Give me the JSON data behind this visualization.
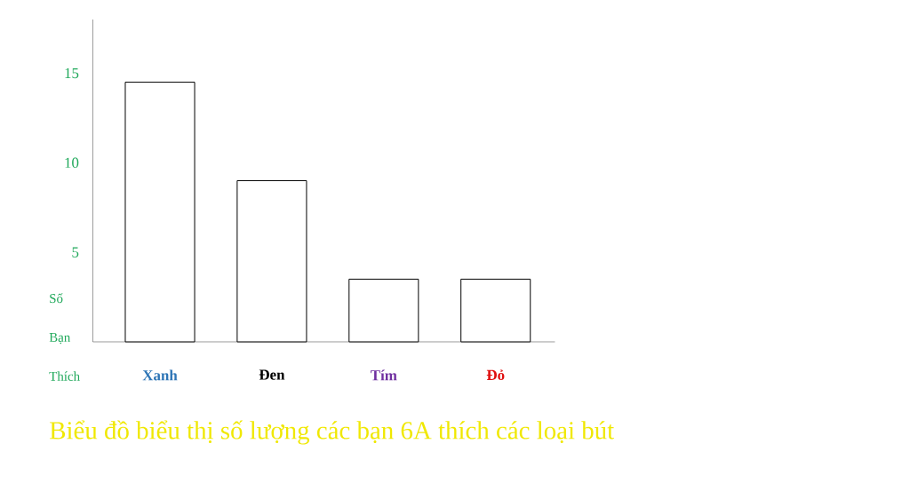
{
  "chart_data": {
    "type": "bar",
    "title": "Biểu đồ biểu thị số lượng các bạn 6A thích các loại bút",
    "ylabel": "Số Bạn Thích",
    "categories": [
      "Xanh",
      "Đen",
      "Tím",
      "Đỏ"
    ],
    "values": [
      14.5,
      9,
      3.5,
      3.5
    ],
    "color": "#ffffff",
    "ylim": [
      0,
      18
    ],
    "yticks": [
      5,
      10,
      15
    ],
    "grid": false
  }
}
